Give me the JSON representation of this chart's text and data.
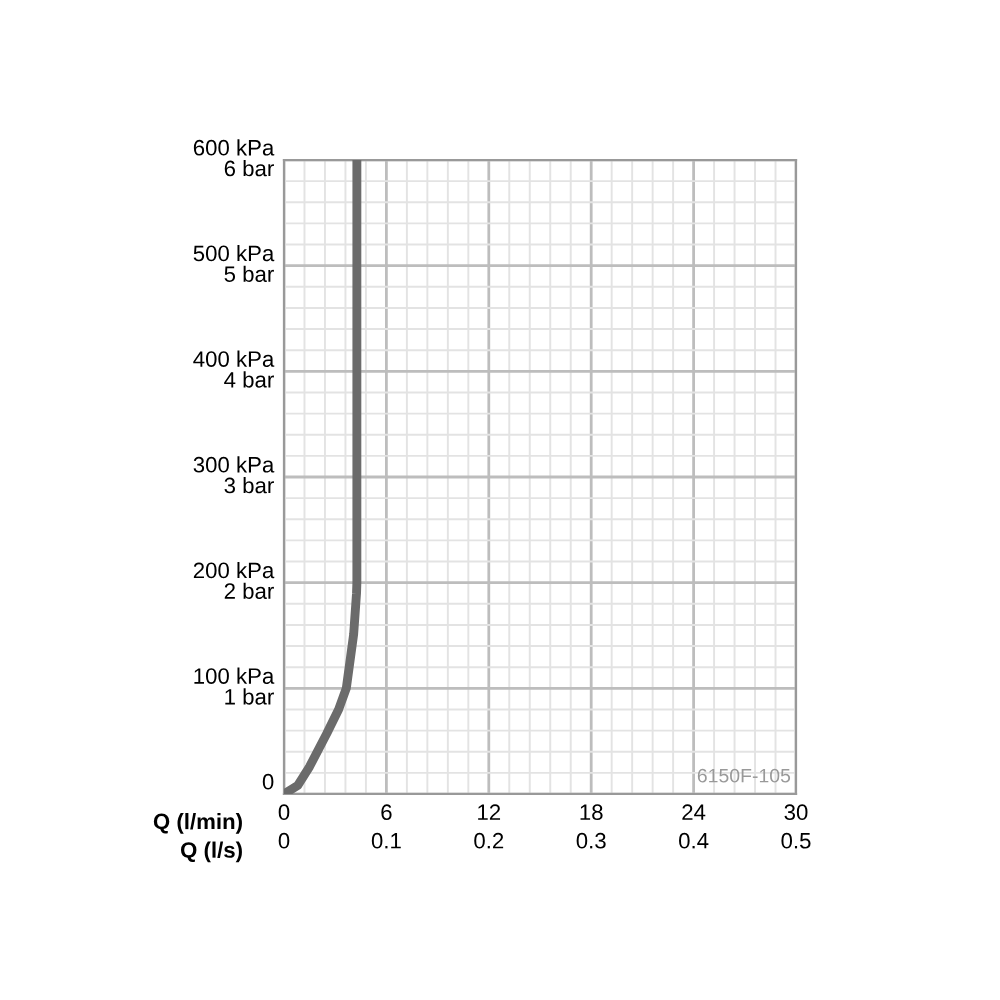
{
  "chart_data": {
    "type": "line",
    "x": [
      0,
      0.8,
      1.5,
      2.5,
      3.2,
      3.65,
      4.08,
      4.25,
      4.27,
      4.27
    ],
    "series": [
      {
        "color": "#6b6b6b",
        "values": [
          0,
          8,
          26,
          57,
          80,
          100,
          151,
          190,
          200,
          600
        ]
      }
    ],
    "xlabel": "Q (l/min)",
    "x2label": "Q (l/s)",
    "xlim": [
      0,
      30
    ],
    "xticks": [
      0,
      6,
      12,
      18,
      24,
      30
    ],
    "x2lim": [
      0,
      0.5
    ],
    "x2ticks": [
      0,
      0.1,
      0.2,
      0.3,
      0.4,
      0.5
    ],
    "ylim": [
      0,
      600
    ],
    "yticks": [
      0,
      {
        "value": 100,
        "label": "100 kPa"
      },
      {
        "value": 200,
        "label": "200 kPa"
      },
      {
        "value": 300,
        "label": "300 kPa"
      },
      {
        "value": 400,
        "label": "400 kPa"
      },
      {
        "value": 500,
        "label": "500 kPa"
      },
      {
        "value": 600,
        "label": "600 kPa"
      }
    ],
    "y2lim": [
      0,
      6
    ],
    "y2ticks": [
      {
        "value": 1,
        "label": "1 bar"
      },
      {
        "value": 2,
        "label": "2 bar"
      },
      {
        "value": 3,
        "label": "3 bar"
      },
      {
        "value": 4,
        "label": "4 bar"
      },
      {
        "value": 5,
        "label": "5 bar"
      },
      {
        "value": 6,
        "label": "6 bar"
      }
    ],
    "grid": true,
    "marker": "none",
    "line_style": "solid",
    "legend": false,
    "annotations": [
      "6150F-105"
    ]
  }
}
